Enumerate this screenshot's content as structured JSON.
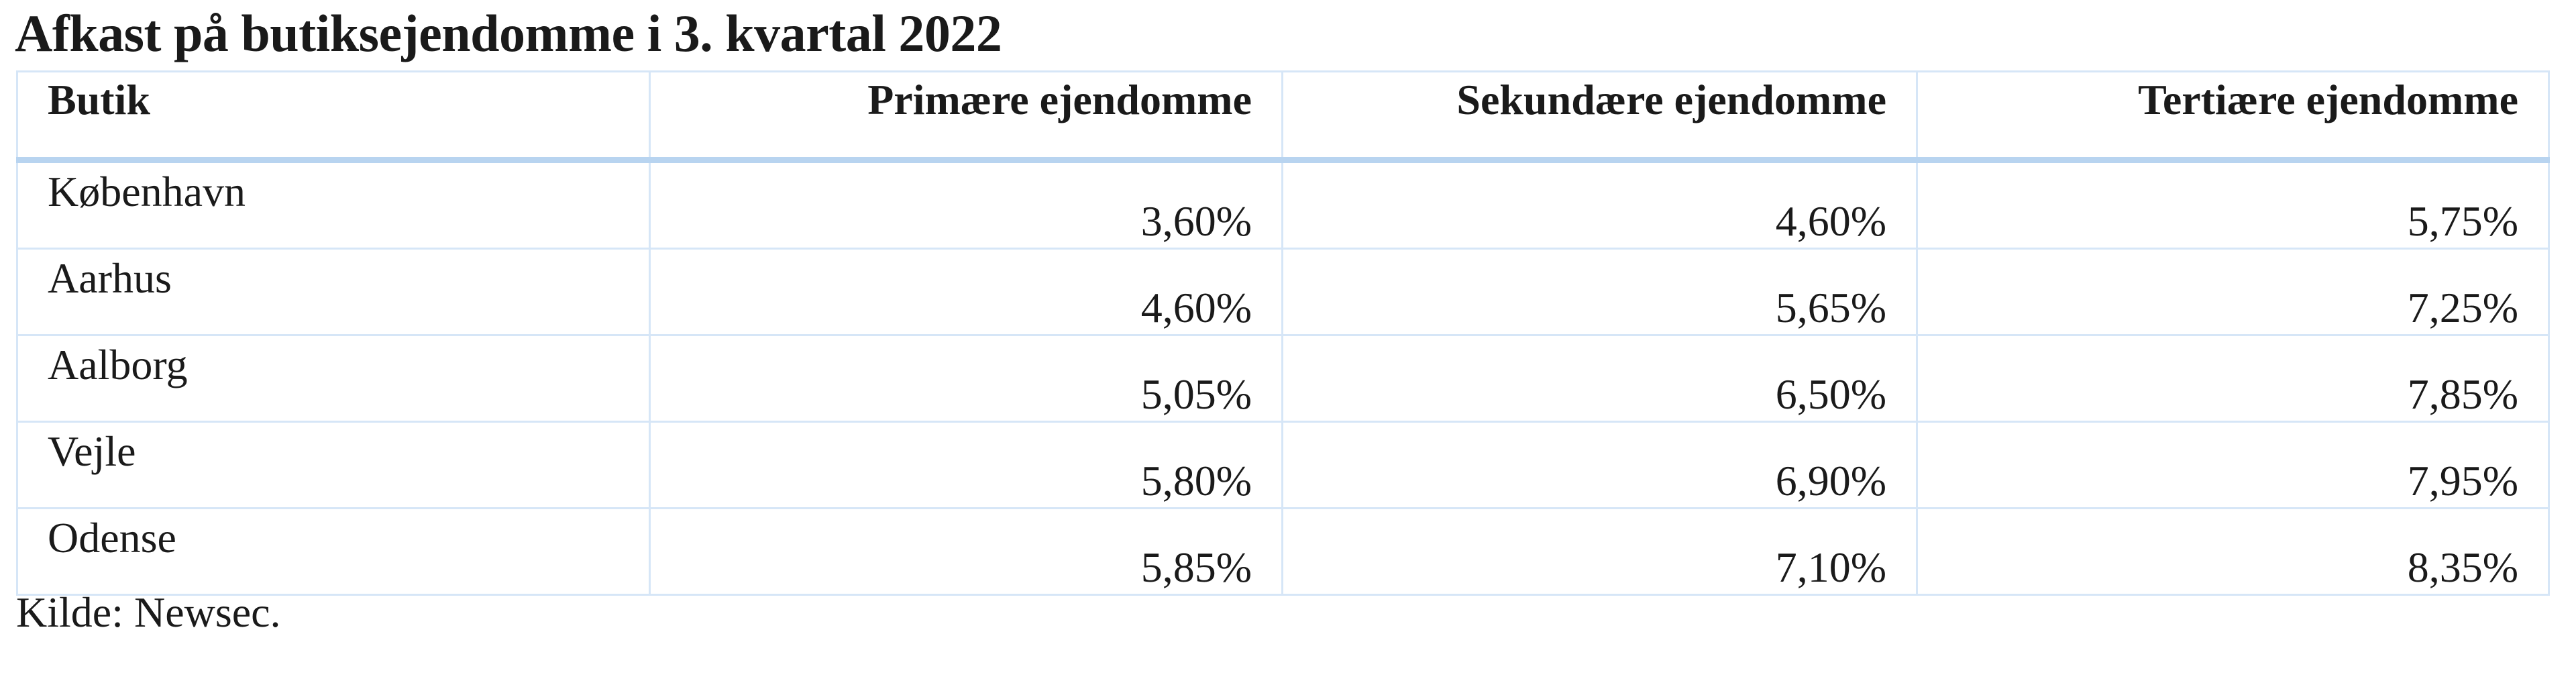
{
  "header": {
    "title": "Afkast på butiksejendomme i 3. kvartal 2022"
  },
  "table": {
    "columns": [
      "Butik",
      "Primære ejendomme",
      "Sekundære ejendomme",
      "Tertiære ejendomme"
    ],
    "rows": [
      [
        "København",
        "3,60%",
        "4,60%",
        "5,75%"
      ],
      [
        "Aarhus",
        "4,60%",
        "5,65%",
        "7,25%"
      ],
      [
        "Aalborg",
        "5,05%",
        "6,50%",
        "7,85%"
      ],
      [
        "Vejle",
        "5,80%",
        "6,90%",
        "7,95%"
      ],
      [
        "Odense",
        "5,85%",
        "7,10%",
        "8,35%"
      ]
    ]
  },
  "footer": {
    "source": "Kilde: Newsec."
  }
}
